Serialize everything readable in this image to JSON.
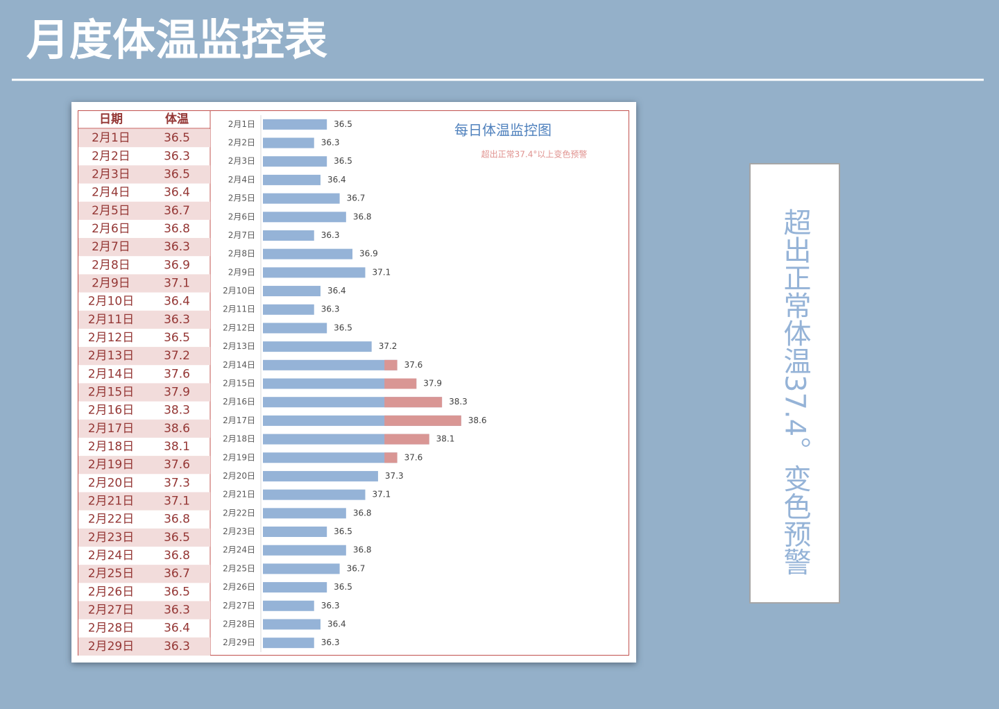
{
  "header": {
    "title": "月度体温监控表"
  },
  "table": {
    "columns": [
      "日期",
      "体温"
    ]
  },
  "chart_data": {
    "type": "bar",
    "orientation": "horizontal",
    "title": "每日体温监控图",
    "subtitle": "超出正常37.4°以上变色预警",
    "categories": [
      "2月1日",
      "2月2日",
      "2月3日",
      "2月4日",
      "2月5日",
      "2月6日",
      "2月7日",
      "2月8日",
      "2月9日",
      "2月10日",
      "2月11日",
      "2月12日",
      "2月13日",
      "2月14日",
      "2月15日",
      "2月16日",
      "2月17日",
      "2月18日",
      "2月19日",
      "2月20日",
      "2月21日",
      "2月22日",
      "2月23日",
      "2月24日",
      "2月25日",
      "2月26日",
      "2月27日",
      "2月28日",
      "2月29日"
    ],
    "values": [
      36.5,
      36.3,
      36.5,
      36.4,
      36.7,
      36.8,
      36.3,
      36.9,
      37.1,
      36.4,
      36.3,
      36.5,
      37.2,
      37.6,
      37.9,
      38.3,
      38.6,
      38.1,
      37.6,
      37.3,
      37.1,
      36.8,
      36.5,
      36.8,
      36.7,
      36.5,
      36.3,
      36.4,
      36.3
    ],
    "color": "#95b3d7",
    "alert_color": "#d99694",
    "threshold": 37.4,
    "xlim": [
      35.5,
      41
    ]
  },
  "note": "超出正常体温37.4。变色预警"
}
